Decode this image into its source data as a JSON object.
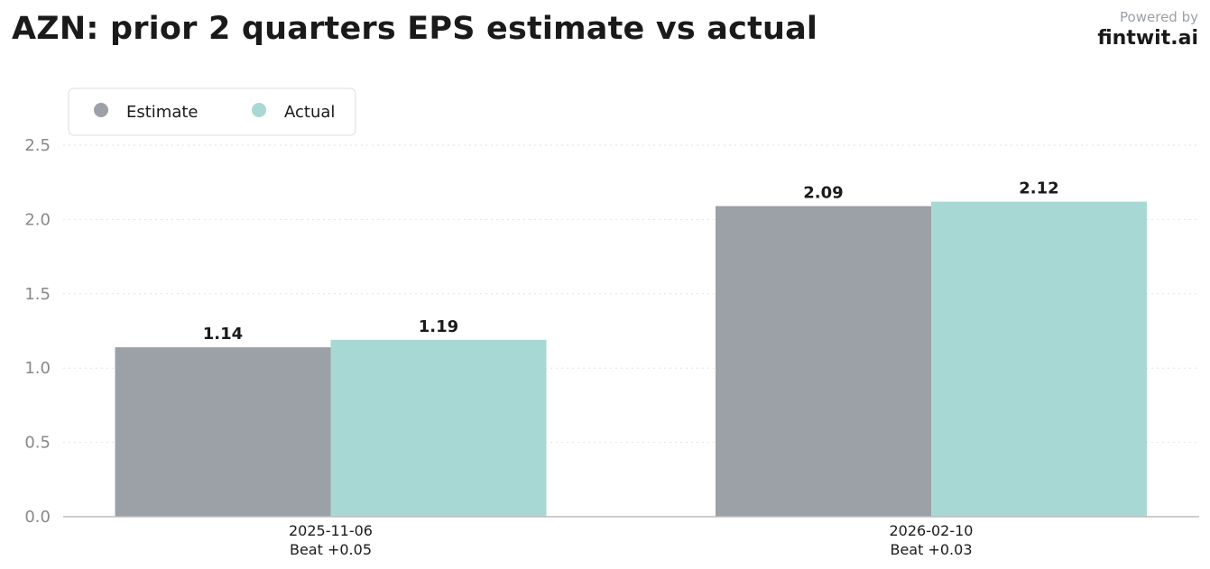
{
  "header": {
    "title": "AZN: prior 2 quarters EPS estimate vs actual",
    "powered_by": "Powered by",
    "brand": "fintwit.ai"
  },
  "chart_data": {
    "type": "bar",
    "categories": [
      "2025-11-06",
      "2026-02-10"
    ],
    "category_notes": [
      "Beat +0.05",
      "Beat +0.03"
    ],
    "series": [
      {
        "name": "Estimate",
        "values": [
          1.14,
          2.09
        ],
        "color": "#9ca0a7"
      },
      {
        "name": "Actual",
        "values": [
          1.19,
          2.12
        ],
        "color": "#a8d8d4"
      }
    ],
    "ylim": [
      0,
      2.5
    ],
    "yticks": [
      "0.0",
      "0.5",
      "1.0",
      "1.5",
      "2.0",
      "2.5"
    ],
    "grid": true,
    "legend_position": "top-left",
    "title": "AZN: prior 2 quarters EPS estimate vs actual",
    "xlabel": "",
    "ylabel": ""
  }
}
